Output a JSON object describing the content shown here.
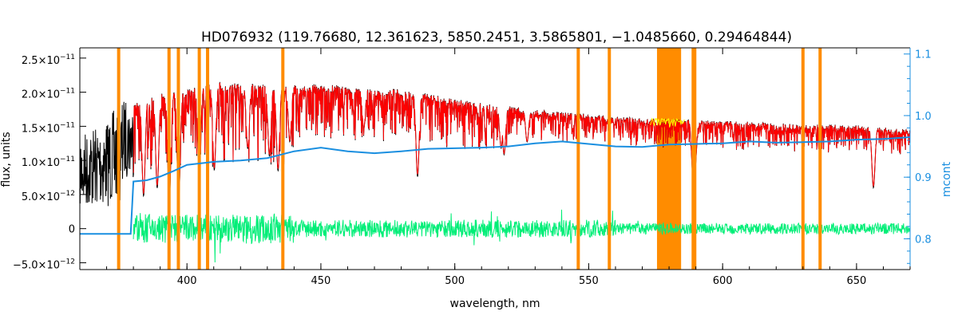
{
  "chart_data": {
    "type": "line",
    "title": "HD076932    (119.76680, 12.361623, 5850.2451, 3.5865801, −1.0485660, 0.29464844)",
    "xlabel": "wavelength, nm",
    "ylabel": "flux, units",
    "y2label": "mcont",
    "xlim": [
      360,
      670
    ],
    "ylim": [
      -6e-12,
      2.65e-11
    ],
    "y2lim": [
      0.75,
      1.11
    ],
    "x_ticks": [
      400,
      450,
      500,
      550,
      600,
      650
    ],
    "x_tick_labels": [
      "400",
      "450",
      "500",
      "550",
      "600",
      "650"
    ],
    "y_ticks": [
      -5e-12,
      0,
      5e-12,
      1e-11,
      1.5e-11,
      2e-11,
      2.5e-11
    ],
    "y_tick_labels": [
      {
        "mant": "−5.0×10",
        "exp": "−12"
      },
      {
        "mant": "0",
        "exp": ""
      },
      {
        "mant": "5.0×10",
        "exp": "−12"
      },
      {
        "mant": "1.0×10",
        "exp": "−11"
      },
      {
        "mant": "1.5×10",
        "exp": "−11"
      },
      {
        "mant": "2.0×10",
        "exp": "−11"
      },
      {
        "mant": "2.5×10",
        "exp": "−11"
      }
    ],
    "y2_ticks": [
      0.8,
      0.9,
      1.0,
      1.1
    ],
    "y2_tick_labels": [
      "0.8",
      "0.9",
      "1.0",
      "1.1"
    ],
    "colors": {
      "observed": "#000000",
      "model": "#ff0000",
      "residual": "#00ee77",
      "continuum": "#1a8fe0",
      "masks": "#ff8c00",
      "highlight": "#ffff00"
    },
    "mask_lines": [
      374.5,
      393.3,
      396.8,
      404.6,
      407.7,
      435.8,
      546.1,
      557.7,
      589.0,
      589.6,
      630.0,
      636.4
    ],
    "mask_band": [
      575.5,
      584.5
    ],
    "continuum_curve": {
      "x": [
        360,
        379,
        380,
        385,
        390,
        395,
        400,
        410,
        420,
        430,
        440,
        450,
        460,
        470,
        480,
        490,
        500,
        510,
        520,
        530,
        540,
        550,
        560,
        570,
        580,
        590,
        600,
        610,
        620,
        630,
        640,
        650,
        660,
        670
      ],
      "y": [
        0.808,
        0.808,
        0.893,
        0.895,
        0.901,
        0.91,
        0.92,
        0.925,
        0.927,
        0.931,
        0.942,
        0.948,
        0.942,
        0.939,
        0.942,
        0.946,
        0.947,
        0.948,
        0.95,
        0.955,
        0.958,
        0.954,
        0.95,
        0.949,
        0.953,
        0.954,
        0.955,
        0.958,
        0.956,
        0.957,
        0.958,
        0.961,
        0.962,
        0.965
      ]
    },
    "flux_envelope": {
      "x": [
        360,
        370,
        376,
        380,
        390,
        400,
        410,
        430,
        450,
        480,
        500,
        510,
        530,
        550,
        570,
        590,
        610,
        630,
        650,
        670
      ],
      "y": [
        1.4e-11,
        1.6e-11,
        1.9e-11,
        1.85e-11,
        2e-11,
        2.05e-11,
        2.15e-11,
        2.12e-11,
        2.12e-11,
        2.05e-11,
        1.9e-11,
        1.85e-11,
        1.75e-11,
        1.68e-11,
        1.62e-11,
        1.6e-11,
        1.57e-11,
        1.53e-11,
        1.52e-11,
        1.45e-11
      ]
    },
    "absorption_lines": [
      {
        "x": 383.8,
        "depth": 0.75
      },
      {
        "x": 388.9,
        "depth": 0.7
      },
      {
        "x": 393.4,
        "depth": 0.8
      },
      {
        "x": 396.9,
        "depth": 0.8
      },
      {
        "x": 404.6,
        "depth": 0.55
      },
      {
        "x": 410.2,
        "depth": 0.6
      },
      {
        "x": 422.7,
        "depth": 0.45
      },
      {
        "x": 430.8,
        "depth": 0.5
      },
      {
        "x": 434.0,
        "depth": 0.6
      },
      {
        "x": 438.4,
        "depth": 0.4
      },
      {
        "x": 466.0,
        "depth": 0.3
      },
      {
        "x": 486.1,
        "depth": 0.62
      },
      {
        "x": 517.3,
        "depth": 0.35
      },
      {
        "x": 518.4,
        "depth": 0.4
      },
      {
        "x": 527.0,
        "depth": 0.28
      },
      {
        "x": 589.0,
        "depth": 0.55
      },
      {
        "x": 589.6,
        "depth": 0.5
      },
      {
        "x": 656.3,
        "depth": 0.6
      }
    ]
  }
}
